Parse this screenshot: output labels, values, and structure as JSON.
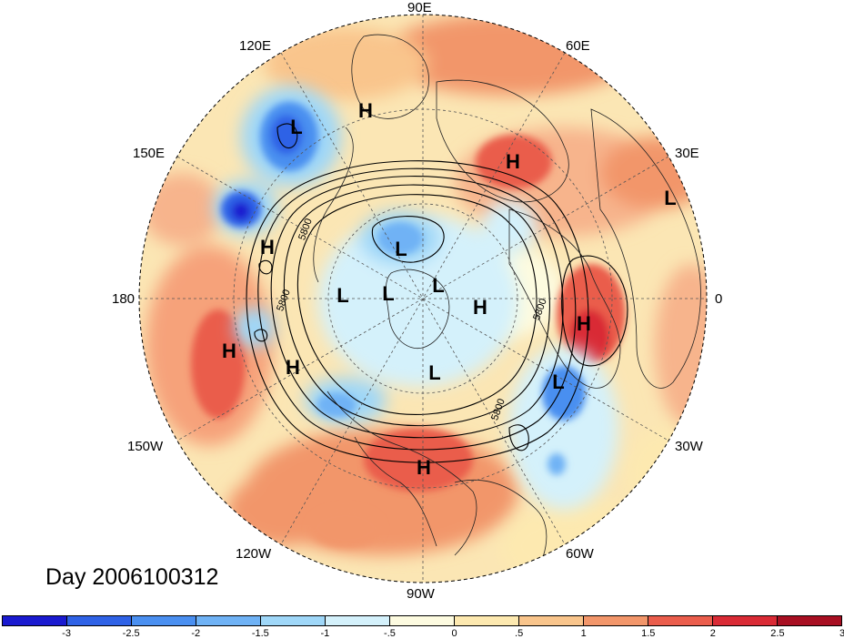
{
  "map": {
    "date_label": "Day 2006100312",
    "longitude_labels": {
      "lon_90E": "90E",
      "lon_60E": "60E",
      "lon_30E": "30E",
      "lon_0": "0",
      "lon_30W": "30W",
      "lon_60W": "60W",
      "lon_90W": "90W",
      "lon_120W": "120W",
      "lon_150W": "150W",
      "lon_180": "180",
      "lon_150E": "150E",
      "lon_120E": "120E"
    },
    "pressure_centers": [
      "L",
      "H",
      "H",
      "L",
      "H",
      "L",
      "L",
      "L",
      "L",
      "H",
      "H",
      "H",
      "H",
      "L",
      "L",
      "H"
    ],
    "contour_labels": [
      "5800",
      "5800",
      "5800",
      "5800"
    ]
  },
  "colorbar": {
    "ticks": [
      "-3",
      "-2.5",
      "-2",
      "-1.5",
      "-1",
      "-.5",
      "0",
      ".5",
      "1",
      "1.5",
      "2",
      "2.5",
      "3"
    ],
    "colors": [
      "#1a1ad0",
      "#2f62e6",
      "#4a8ff0",
      "#6fb2f5",
      "#9fd7f8",
      "#d4f1fb",
      "#fdfbe0",
      "#fde9b0",
      "#f9c58c",
      "#f2966a",
      "#ea5d4c",
      "#d92a35",
      "#a80f22"
    ]
  }
}
